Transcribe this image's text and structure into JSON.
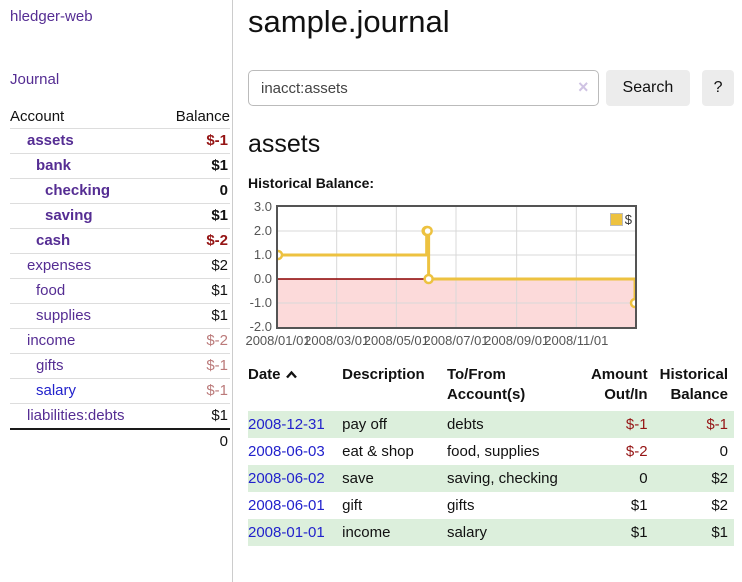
{
  "colors": {
    "link_purple": "#552d93",
    "link_blue": "#2222cc",
    "negative_strong": "#951414",
    "negative_soft": "#bb7a7a",
    "row_stripe_green": "#dcefdc",
    "button_gray": "#ececec"
  },
  "sidebar": {
    "brand": "hledger-web",
    "nav": {
      "journal": "Journal"
    },
    "accounts_table": {
      "headers": {
        "account": "Account",
        "balance": "Balance"
      },
      "rows": [
        {
          "name": "assets",
          "indent": 1,
          "bold": true,
          "balance": "$-1",
          "negative": "strong"
        },
        {
          "name": "bank",
          "indent": 2,
          "bold": true,
          "balance": "$1",
          "negative": null
        },
        {
          "name": "checking",
          "indent": 3,
          "bold": true,
          "balance": "0",
          "negative": null
        },
        {
          "name": "saving",
          "indent": 3,
          "bold": true,
          "balance": "$1",
          "negative": null
        },
        {
          "name": "cash",
          "indent": 2,
          "bold": true,
          "balance": "$-2",
          "negative": "strong"
        },
        {
          "name": "expenses",
          "indent": 1,
          "bold": false,
          "balance": "$2",
          "negative": null
        },
        {
          "name": "food",
          "indent": 2,
          "bold": false,
          "balance": "$1",
          "negative": null
        },
        {
          "name": "supplies",
          "indent": 2,
          "bold": false,
          "balance": "$1",
          "negative": null
        },
        {
          "name": "income",
          "indent": 1,
          "bold": false,
          "balance": "$-2",
          "negative": "soft"
        },
        {
          "name": "gifts",
          "indent": 2,
          "bold": false,
          "balance": "$-1",
          "negative": "soft"
        },
        {
          "name": "salary",
          "indent": 2,
          "bold": false,
          "balance": "$-1",
          "negative": "soft",
          "link_color": "blue"
        },
        {
          "name": "liabilities:debts",
          "indent": 1,
          "bold": false,
          "balance": "$1",
          "negative": null
        }
      ],
      "total": "0"
    }
  },
  "header": {
    "title": "sample.journal"
  },
  "search": {
    "value": "inacct:assets",
    "clear_icon": "×",
    "button_label": "Search",
    "help_label": "?"
  },
  "account_page": {
    "heading": "assets",
    "chart_label": "Historical Balance:"
  },
  "chart_data": {
    "type": "line",
    "step": true,
    "title": "Historical Balance",
    "xlabel": "",
    "ylabel": "",
    "xlim": [
      "2008-01-01",
      "2008-12-31"
    ],
    "ylim": [
      -2,
      3
    ],
    "y_ticks": [
      3,
      2,
      1,
      0,
      -1,
      -2
    ],
    "x_ticks": [
      {
        "date": "2008-01-01",
        "label": "2008/01/01"
      },
      {
        "date": "2008-03-01",
        "label": "2008/03/01"
      },
      {
        "date": "2008-05-01",
        "label": "2008/05/01"
      },
      {
        "date": "2008-07-01",
        "label": "2008/07/01"
      },
      {
        "date": "2008-09-01",
        "label": "2008/09/01"
      },
      {
        "date": "2008-11-01",
        "label": "2008/11/01"
      }
    ],
    "grid": true,
    "legend_position": "top-right",
    "series": [
      {
        "name": "$",
        "color": "#edc240",
        "x": [
          "2008-01-01",
          "2008-06-01",
          "2008-06-02",
          "2008-06-03",
          "2008-12-31"
        ],
        "values": [
          1,
          2,
          2,
          0,
          -1
        ]
      }
    ],
    "zero_line_color": "#8b0000",
    "negative_region_color": "#fcdada",
    "grid_color": "#d8d8d8",
    "border_color": "#545454"
  },
  "register": {
    "columns": [
      "Date",
      "Description",
      "To/From Account(s)",
      "Amount Out/In",
      "Historical Balance"
    ],
    "sort": {
      "column": "Date",
      "direction": "ascending"
    },
    "rows": [
      {
        "date": "2008-12-31",
        "description": "pay off",
        "accounts": "debts",
        "amount": "$-1",
        "amount_negative": true,
        "balance": "$-1",
        "balance_negative": true
      },
      {
        "date": "2008-06-03",
        "description": "eat & shop",
        "accounts": "food, supplies",
        "amount": "$-2",
        "amount_negative": true,
        "balance": "0",
        "balance_negative": false
      },
      {
        "date": "2008-06-02",
        "description": "save",
        "accounts": "saving, checking",
        "amount": "0",
        "amount_negative": false,
        "balance": "$2",
        "balance_negative": false
      },
      {
        "date": "2008-06-01",
        "description": "gift",
        "accounts": "gifts",
        "amount": "$1",
        "amount_negative": false,
        "balance": "$2",
        "balance_negative": false
      },
      {
        "date": "2008-01-01",
        "description": "income",
        "accounts": "salary",
        "amount": "$1",
        "amount_negative": false,
        "balance": "$1",
        "balance_negative": false
      }
    ]
  }
}
